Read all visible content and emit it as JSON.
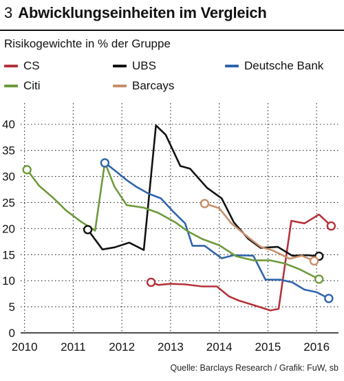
{
  "header": {
    "number": "3",
    "title": "Abwicklungseinheiten im Vergleich"
  },
  "source": "Quelle: Barclays Research / Grafik: FuW, sb",
  "colors": {
    "CS": "#b5323a",
    "UBS": "#111111",
    "Deutsche Bank": "#2e64ab",
    "Citi": "#6e9a3b",
    "Barcays": "#c98f6a"
  },
  "chart_data": {
    "type": "line",
    "subtitle": "Risikogewichte in % der Gruppe",
    "xlabel": "",
    "ylabel": "",
    "xlim": [
      2009.92,
      2016.45
    ],
    "ylim": [
      0,
      43
    ],
    "x_ticks": [
      2010,
      2011,
      2012,
      2013,
      2014,
      2015,
      2016
    ],
    "y_ticks": [
      0,
      5,
      10,
      15,
      20,
      25,
      30,
      35,
      40
    ],
    "grid": "dotted",
    "series": [
      {
        "name": "CS",
        "color": "#b5323a",
        "points": [
          [
            2012.6,
            9.7
          ],
          [
            2012.75,
            9.2
          ],
          [
            2013.0,
            9.4
          ],
          [
            2013.3,
            9.3
          ],
          [
            2013.65,
            8.9
          ],
          [
            2013.95,
            8.9
          ],
          [
            2014.2,
            7.0
          ],
          [
            2014.4,
            6.2
          ],
          [
            2014.75,
            5.2
          ],
          [
            2015.05,
            4.3
          ],
          [
            2015.22,
            4.6
          ],
          [
            2015.48,
            21.5
          ],
          [
            2015.75,
            21.0
          ],
          [
            2016.05,
            22.7
          ],
          [
            2016.3,
            20.5
          ]
        ],
        "start_marker": true,
        "end_marker": true
      },
      {
        "name": "UBS",
        "color": "#111111",
        "points": [
          [
            2011.3,
            19.8
          ],
          [
            2011.6,
            16.0
          ],
          [
            2011.85,
            16.4
          ],
          [
            2012.15,
            17.3
          ],
          [
            2012.45,
            15.9
          ],
          [
            2012.7,
            39.8
          ],
          [
            2012.9,
            38.0
          ],
          [
            2013.2,
            32.0
          ],
          [
            2013.4,
            31.5
          ],
          [
            2013.75,
            27.8
          ],
          [
            2014.05,
            25.8
          ],
          [
            2014.3,
            21.2
          ],
          [
            2014.6,
            18.0
          ],
          [
            2014.85,
            16.3
          ],
          [
            2015.2,
            16.5
          ],
          [
            2015.5,
            14.8
          ],
          [
            2015.8,
            14.9
          ],
          [
            2016.05,
            14.7
          ]
        ],
        "start_marker": true,
        "end_marker": true
      },
      {
        "name": "Deutsche Bank",
        "color": "#2e64ab",
        "points": [
          [
            2011.65,
            32.6
          ],
          [
            2011.85,
            31.2
          ],
          [
            2012.1,
            29.3
          ],
          [
            2012.3,
            28.0
          ],
          [
            2012.55,
            26.7
          ],
          [
            2012.8,
            25.8
          ],
          [
            2013.05,
            23.3
          ],
          [
            2013.3,
            21.0
          ],
          [
            2013.45,
            16.7
          ],
          [
            2013.7,
            16.7
          ],
          [
            2014.05,
            14.3
          ],
          [
            2014.3,
            14.9
          ],
          [
            2014.7,
            14.8
          ],
          [
            2014.95,
            10.2
          ],
          [
            2015.25,
            10.2
          ],
          [
            2015.5,
            9.7
          ],
          [
            2015.75,
            8.3
          ],
          [
            2016.0,
            7.8
          ],
          [
            2016.25,
            6.6
          ]
        ],
        "start_marker": true,
        "end_marker": true
      },
      {
        "name": "Citi",
        "color": "#6e9a3b",
        "points": [
          [
            2010.05,
            31.3
          ],
          [
            2010.3,
            28.2
          ],
          [
            2010.6,
            25.8
          ],
          [
            2010.85,
            23.5
          ],
          [
            2011.15,
            21.4
          ],
          [
            2011.45,
            19.6
          ],
          [
            2011.65,
            32.7
          ],
          [
            2011.85,
            28.0
          ],
          [
            2012.1,
            24.5
          ],
          [
            2012.45,
            24.0
          ],
          [
            2012.75,
            23.0
          ],
          [
            2013.1,
            21.2
          ],
          [
            2013.35,
            19.5
          ],
          [
            2013.65,
            18.0
          ],
          [
            2014.0,
            16.8
          ],
          [
            2014.35,
            14.7
          ],
          [
            2014.7,
            13.9
          ],
          [
            2015.05,
            13.9
          ],
          [
            2015.35,
            13.3
          ],
          [
            2015.65,
            12.2
          ],
          [
            2016.05,
            10.3
          ]
        ],
        "start_marker": true,
        "end_marker": true
      },
      {
        "name": "Barcays",
        "color": "#c98f6a",
        "points": [
          [
            2013.7,
            24.8
          ],
          [
            2014.0,
            23.9
          ],
          [
            2014.25,
            21.0
          ],
          [
            2014.6,
            18.3
          ],
          [
            2014.85,
            16.5
          ],
          [
            2015.1,
            15.8
          ],
          [
            2015.45,
            14.2
          ],
          [
            2015.7,
            14.8
          ],
          [
            2015.95,
            13.8
          ]
        ],
        "start_marker": true,
        "end_marker": true
      }
    ],
    "legend_order": [
      "CS",
      "UBS",
      "Deutsche Bank",
      "Citi",
      "Barcays"
    ],
    "legend_placement": "top"
  }
}
